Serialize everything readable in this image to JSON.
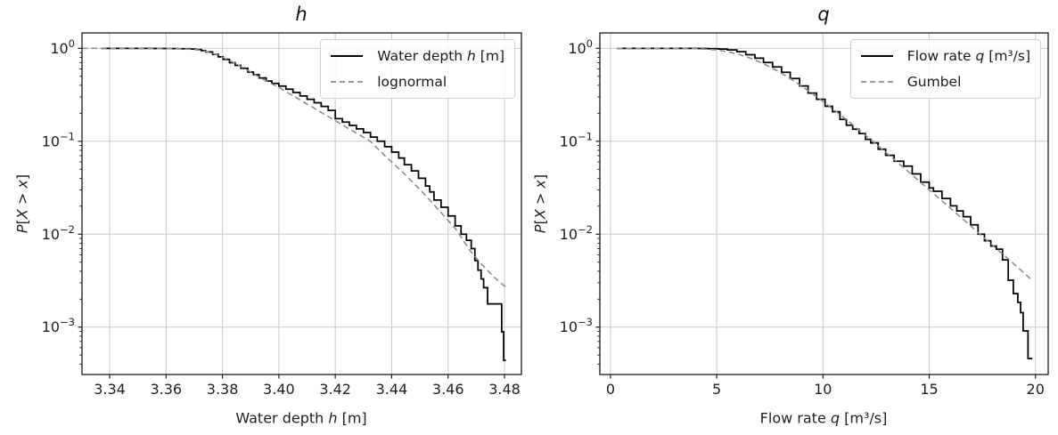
{
  "figure": {
    "background": "#ffffff",
    "colors": {
      "grid": "#c9c9c9",
      "spine": "#1a1a1a",
      "tick_label": "#1f1f1f",
      "empirical_line": "#000000",
      "fit_line": "#8c8c8c",
      "legend_border": "#d2d2d2",
      "legend_background": "#ffffff"
    }
  },
  "chart_data": [
    {
      "type": "line",
      "title": "h",
      "xlabel_parts": [
        {
          "text": "Water depth ",
          "italic": false
        },
        {
          "text": "h",
          "italic": true
        },
        {
          "text": " [m]",
          "italic": false
        }
      ],
      "ylabel_parts": [
        {
          "text": "P",
          "italic": true
        },
        {
          "text": "[",
          "italic": false
        },
        {
          "text": "X",
          "italic": true
        },
        {
          "text": " > ",
          "italic": false
        },
        {
          "text": "x",
          "italic": true
        },
        {
          "text": "]",
          "italic": false
        }
      ],
      "xlim": [
        3.3302,
        3.486
      ],
      "xticks": [
        3.34,
        3.36,
        3.38,
        3.4,
        3.42,
        3.44,
        3.46,
        3.48
      ],
      "xtick_labels": [
        "3.34",
        "3.36",
        "3.38",
        "3.40",
        "3.42",
        "3.44",
        "3.46",
        "3.48"
      ],
      "ylog_lim": [
        -3.51,
        0.166
      ],
      "ytick_exponents": [
        0,
        -1,
        -2,
        -3
      ],
      "ytick_labels": [
        {
          "mantissa": "10",
          "exp": "0"
        },
        {
          "mantissa": "10",
          "exp": "−1"
        },
        {
          "mantissa": "10",
          "exp": "−2"
        },
        {
          "mantissa": "10",
          "exp": "−3"
        }
      ],
      "grid": true,
      "legend_loc": "upper right",
      "legend": [
        {
          "style": "solid",
          "label_parts": [
            {
              "text": "Water depth ",
              "italic": false
            },
            {
              "text": "h",
              "italic": true
            },
            {
              "text": " [m]",
              "italic": false
            }
          ]
        },
        {
          "style": "dashed",
          "label_parts": [
            {
              "text": "lognormal",
              "italic": false
            }
          ]
        }
      ],
      "series": [
        {
          "name": "empirical-survival-water-depth",
          "mode": "steps",
          "style": "solid",
          "x": [
            3.337,
            3.344,
            3.35,
            3.3555,
            3.36,
            3.364,
            3.3685,
            3.3705,
            3.3725,
            3.374,
            3.3765,
            3.3785,
            3.3802,
            3.3825,
            3.3845,
            3.3865,
            3.389,
            3.391,
            3.393,
            3.3955,
            3.3975,
            3.4,
            3.4025,
            3.405,
            3.4075,
            3.41,
            3.4125,
            3.415,
            3.4175,
            3.42,
            3.4225,
            3.425,
            3.4275,
            3.43,
            3.4325,
            3.4349,
            3.4375,
            3.44,
            3.4425,
            3.4445,
            3.447,
            3.4495,
            3.452,
            3.4535,
            3.455,
            3.4575,
            3.46,
            3.4625,
            3.4646,
            3.4665,
            3.4682,
            3.4695,
            3.4706,
            3.4717,
            3.4726,
            3.474,
            3.479,
            3.4797,
            3.4805
          ],
          "p": [
            1.0,
            1.0,
            0.999,
            0.9975,
            0.995,
            0.991,
            0.982,
            0.97,
            0.945,
            0.916,
            0.862,
            0.81,
            0.761,
            0.7,
            0.655,
            0.611,
            0.555,
            0.52,
            0.48,
            0.445,
            0.42,
            0.393,
            0.363,
            0.335,
            0.307,
            0.283,
            0.26,
            0.237,
            0.215,
            0.175,
            0.161,
            0.148,
            0.136,
            0.124,
            0.111,
            0.1,
            0.0875,
            0.0765,
            0.066,
            0.056,
            0.048,
            0.04,
            0.033,
            0.0285,
            0.0233,
            0.0195,
            0.0157,
            0.0123,
            0.01,
            0.0086,
            0.007,
            0.0052,
            0.0041,
            0.0033,
            0.00266,
            0.00178,
            0.00089,
            0.00044,
            0.00044
          ]
        },
        {
          "name": "lognormal-fit",
          "mode": "line",
          "style": "dashed",
          "x": [
            3.3302,
            3.342,
            3.352,
            3.36,
            3.3655,
            3.3695,
            3.3725,
            3.375,
            3.3775,
            3.38,
            3.383,
            3.386,
            3.3895,
            3.393,
            3.3965,
            3.4,
            3.404,
            3.408,
            3.412,
            3.416,
            3.42,
            3.424,
            3.428,
            3.4324,
            3.438,
            3.444,
            3.4508,
            3.457,
            3.463,
            3.4677,
            3.472,
            3.4765,
            3.481
          ],
          "p": [
            0.9999,
            0.999,
            0.9972,
            0.9935,
            0.9865,
            0.977,
            0.952,
            0.912,
            0.863,
            0.8,
            0.725,
            0.65,
            0.568,
            0.49,
            0.43,
            0.38,
            0.322,
            0.273,
            0.232,
            0.196,
            0.167,
            0.141,
            0.12,
            0.1,
            0.068,
            0.0462,
            0.0286,
            0.0178,
            0.0111,
            0.0067,
            0.0047,
            0.0034,
            0.0026
          ]
        }
      ]
    },
    {
      "type": "line",
      "title": "q",
      "xlabel_parts": [
        {
          "text": "Flow rate ",
          "italic": false
        },
        {
          "text": "q",
          "italic": true
        },
        {
          "text": " [m³/s]",
          "italic": false
        }
      ],
      "ylabel_parts": [
        {
          "text": "P",
          "italic": true
        },
        {
          "text": "[",
          "italic": false
        },
        {
          "text": "X",
          "italic": true
        },
        {
          "text": " > ",
          "italic": false
        },
        {
          "text": "x",
          "italic": true
        },
        {
          "text": "]",
          "italic": false
        }
      ],
      "xlim": [
        -0.5,
        20.6
      ],
      "xticks": [
        0,
        5,
        10,
        15,
        20
      ],
      "xtick_labels": [
        "0",
        "5",
        "10",
        "15",
        "20"
      ],
      "ylog_lim": [
        -3.51,
        0.166
      ],
      "ytick_exponents": [
        0,
        -1,
        -2,
        -3
      ],
      "ytick_labels": [
        {
          "mantissa": "10",
          "exp": "0"
        },
        {
          "mantissa": "10",
          "exp": "−1"
        },
        {
          "mantissa": "10",
          "exp": "−2"
        },
        {
          "mantissa": "10",
          "exp": "−3"
        }
      ],
      "grid": true,
      "legend_loc": "upper right",
      "legend": [
        {
          "style": "solid",
          "label_parts": [
            {
              "text": "Flow rate ",
              "italic": false
            },
            {
              "text": "q",
              "italic": true
            },
            {
              "text": " [m³/s]",
              "italic": false
            }
          ]
        },
        {
          "style": "dashed",
          "label_parts": [
            {
              "text": "Gumbel",
              "italic": false
            }
          ]
        }
      ],
      "series": [
        {
          "name": "empirical-survival-flow-rate",
          "mode": "steps",
          "style": "solid",
          "x": [
            0.3,
            2.0,
            3.2,
            4.0,
            4.6,
            5.1,
            5.5,
            5.95,
            6.37,
            6.8,
            7.2,
            7.63,
            8.05,
            8.46,
            8.9,
            9.3,
            9.7,
            10.1,
            10.45,
            10.8,
            11.1,
            11.4,
            11.7,
            12.0,
            12.25,
            12.6,
            12.95,
            13.35,
            13.8,
            14.2,
            14.6,
            15.0,
            15.2,
            15.6,
            16.0,
            16.3,
            16.6,
            16.95,
            17.3,
            17.6,
            17.9,
            18.16,
            18.45,
            18.72,
            18.96,
            19.17,
            19.3,
            19.42,
            19.65,
            19.85
          ],
          "p": [
            1.0,
            1.0,
            0.9985,
            0.996,
            0.991,
            0.984,
            0.962,
            0.92,
            0.855,
            0.785,
            0.705,
            0.63,
            0.552,
            0.474,
            0.394,
            0.33,
            0.283,
            0.238,
            0.208,
            0.172,
            0.149,
            0.135,
            0.121,
            0.105,
            0.096,
            0.082,
            0.0705,
            0.061,
            0.054,
            0.0445,
            0.0363,
            0.0315,
            0.029,
            0.0242,
            0.0202,
            0.0178,
            0.0154,
            0.0126,
            0.01,
            0.0085,
            0.00745,
            0.0069,
            0.0053,
            0.0032,
            0.0023,
            0.00185,
            0.00143,
            0.00091,
            0.00046,
            0.00046
          ]
        },
        {
          "name": "gumbel-fit",
          "mode": "line",
          "style": "dashed",
          "x": [
            0.3,
            1.5,
            2.5,
            3.5,
            4.2,
            5.0,
            5.5,
            6.0,
            6.5,
            7.0,
            7.5,
            8.0,
            8.5,
            9.0,
            9.5,
            10.0,
            10.5,
            11.0,
            11.5,
            12.0,
            12.5,
            13.0,
            13.5,
            14.0,
            14.5,
            15.0,
            15.5,
            16.0,
            16.5,
            17.0,
            17.5,
            18.0,
            18.5,
            19.0,
            19.4,
            19.8
          ],
          "p": [
            0.99999,
            0.99999,
            0.99996,
            0.9984,
            0.9903,
            0.9592,
            0.9208,
            0.8659,
            0.7964,
            0.7169,
            0.6321,
            0.5472,
            0.4663,
            0.392,
            0.326,
            0.2685,
            0.2195,
            0.1783,
            0.1442,
            0.116,
            0.0931,
            0.0745,
            0.0595,
            0.0475,
            0.0378,
            0.0301,
            0.0239,
            0.019,
            0.0151,
            0.012,
            0.0095,
            0.00754,
            0.006,
            0.00475,
            0.00394,
            0.00327
          ]
        }
      ]
    }
  ]
}
